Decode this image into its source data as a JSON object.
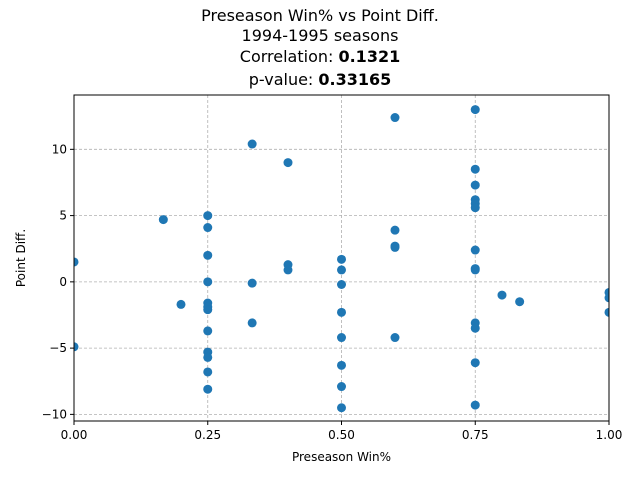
{
  "chart_data": {
    "type": "scatter",
    "title": "Preseason Win% vs Point Diff.",
    "subtitle": "1994-1995 seasons",
    "stats": [
      {
        "label": "Correlation: ",
        "value": "0.1321"
      },
      {
        "label": "p-value: ",
        "value": "0.33165"
      }
    ],
    "xlabel": "Preseason Win%",
    "ylabel": "Point Diff.",
    "xlim": [
      0.0,
      1.0
    ],
    "ylim": [
      -10.5,
      14.1
    ],
    "xticks": [
      {
        "value": 0.0,
        "label": "0.00"
      },
      {
        "value": 0.25,
        "label": "0.25"
      },
      {
        "value": 0.5,
        "label": "0.50"
      },
      {
        "value": 0.75,
        "label": "0.75"
      },
      {
        "value": 1.0,
        "label": "1.00"
      }
    ],
    "yticks": [
      {
        "value": -10,
        "label": "−10"
      },
      {
        "value": -5,
        "label": "−5"
      },
      {
        "value": 0,
        "label": "0"
      },
      {
        "value": 5,
        "label": "5"
      },
      {
        "value": 10,
        "label": "10"
      }
    ],
    "grid": true,
    "marker_color": "#1f77b4",
    "points": [
      {
        "x": 0.0,
        "y": 1.5
      },
      {
        "x": 0.0,
        "y": -4.9
      },
      {
        "x": 0.167,
        "y": 4.7
      },
      {
        "x": 0.2,
        "y": -1.7
      },
      {
        "x": 0.25,
        "y": 5.0
      },
      {
        "x": 0.25,
        "y": 4.1
      },
      {
        "x": 0.25,
        "y": 2.0
      },
      {
        "x": 0.25,
        "y": 0.0
      },
      {
        "x": 0.25,
        "y": -1.6
      },
      {
        "x": 0.25,
        "y": -1.9
      },
      {
        "x": 0.25,
        "y": -2.1
      },
      {
        "x": 0.25,
        "y": -3.7
      },
      {
        "x": 0.25,
        "y": -5.3
      },
      {
        "x": 0.25,
        "y": -5.7
      },
      {
        "x": 0.25,
        "y": -6.8
      },
      {
        "x": 0.25,
        "y": -8.1
      },
      {
        "x": 0.333,
        "y": 10.4
      },
      {
        "x": 0.333,
        "y": -0.1
      },
      {
        "x": 0.333,
        "y": -3.1
      },
      {
        "x": 0.4,
        "y": 9.0
      },
      {
        "x": 0.4,
        "y": 1.3
      },
      {
        "x": 0.4,
        "y": 0.9
      },
      {
        "x": 0.5,
        "y": 1.7
      },
      {
        "x": 0.5,
        "y": 0.9
      },
      {
        "x": 0.5,
        "y": -0.2
      },
      {
        "x": 0.5,
        "y": -2.3
      },
      {
        "x": 0.5,
        "y": -4.2
      },
      {
        "x": 0.5,
        "y": -6.3
      },
      {
        "x": 0.5,
        "y": -7.9
      },
      {
        "x": 0.5,
        "y": -9.5
      },
      {
        "x": 0.6,
        "y": 12.4
      },
      {
        "x": 0.6,
        "y": 3.9
      },
      {
        "x": 0.6,
        "y": 2.7
      },
      {
        "x": 0.6,
        "y": 2.6
      },
      {
        "x": 0.6,
        "y": -4.2
      },
      {
        "x": 0.75,
        "y": 13.0
      },
      {
        "x": 0.75,
        "y": 8.5
      },
      {
        "x": 0.75,
        "y": 7.3
      },
      {
        "x": 0.75,
        "y": 6.2
      },
      {
        "x": 0.75,
        "y": 5.9
      },
      {
        "x": 0.75,
        "y": 5.6
      },
      {
        "x": 0.75,
        "y": 2.4
      },
      {
        "x": 0.75,
        "y": 1.0
      },
      {
        "x": 0.75,
        "y": 0.9
      },
      {
        "x": 0.75,
        "y": -3.1
      },
      {
        "x": 0.75,
        "y": -3.5
      },
      {
        "x": 0.75,
        "y": -6.1
      },
      {
        "x": 0.75,
        "y": -9.3
      },
      {
        "x": 0.8,
        "y": -1.0
      },
      {
        "x": 0.833,
        "y": -1.5
      },
      {
        "x": 1.0,
        "y": -0.8
      },
      {
        "x": 1.0,
        "y": -1.2
      },
      {
        "x": 1.0,
        "y": -2.3
      }
    ]
  }
}
